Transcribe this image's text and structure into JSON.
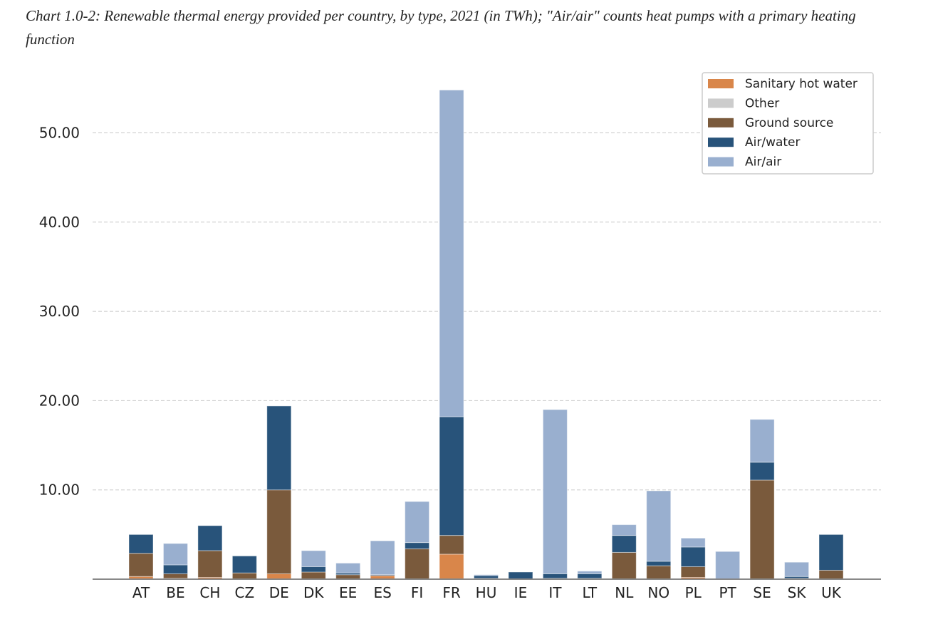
{
  "chart_data": {
    "type": "bar",
    "stacked": true,
    "title": "Chart 1.0-2: Renewable thermal energy provided per country, by type, 2021 (in TWh); \"Air/air\" counts heat pumps with a primary heating function",
    "xlabel": "",
    "ylabel": "",
    "ylim": [
      0,
      56
    ],
    "yticks": [
      "10.00",
      "20.00",
      "30.00",
      "40.00",
      "50.00"
    ],
    "grid": "horizontal dashed",
    "legend_position": "top-right",
    "categories": [
      "AT",
      "BE",
      "CH",
      "CZ",
      "DE",
      "DK",
      "EE",
      "ES",
      "FI",
      "FR",
      "HU",
      "IE",
      "IT",
      "LT",
      "NL",
      "NO",
      "PL",
      "PT",
      "SE",
      "SK",
      "UK"
    ],
    "series": [
      {
        "name": "Sanitary hot water",
        "color": "#d9864a",
        "values": [
          0.3,
          0.1,
          0.2,
          0,
          0.6,
          0,
          0,
          0.4,
          0,
          2.8,
          0,
          0,
          0,
          0,
          0,
          0,
          0.2,
          0,
          0,
          0,
          0
        ]
      },
      {
        "name": "Other",
        "color": "#cccccc",
        "values": [
          0,
          0,
          0,
          0,
          0,
          0,
          0,
          0,
          0,
          0,
          0,
          0,
          0,
          0,
          0,
          0,
          0,
          0,
          0,
          0,
          0
        ]
      },
      {
        "name": "Ground source",
        "color": "#7a5a3c",
        "values": [
          2.6,
          0.5,
          3.0,
          0.7,
          9.4,
          0.8,
          0.5,
          0,
          3.4,
          2.1,
          0.1,
          0,
          0.1,
          0.1,
          3.0,
          1.5,
          1.2,
          0,
          11.1,
          0.1,
          1.0
        ]
      },
      {
        "name": "Air/water",
        "color": "#28537a",
        "values": [
          2.1,
          1.0,
          2.8,
          1.9,
          9.4,
          0.6,
          0.2,
          0.1,
          0.7,
          13.3,
          0.3,
          0.8,
          0.5,
          0.5,
          1.9,
          0.5,
          2.2,
          0,
          2.0,
          0.2,
          4.0
        ]
      },
      {
        "name": "Air/air",
        "color": "#99afcf",
        "values": [
          0,
          2.4,
          0,
          0,
          0,
          1.8,
          1.1,
          3.8,
          4.6,
          36.6,
          0.1,
          0,
          18.4,
          0.3,
          1.2,
          7.9,
          1.0,
          3.1,
          4.8,
          1.6,
          0
        ]
      }
    ]
  }
}
